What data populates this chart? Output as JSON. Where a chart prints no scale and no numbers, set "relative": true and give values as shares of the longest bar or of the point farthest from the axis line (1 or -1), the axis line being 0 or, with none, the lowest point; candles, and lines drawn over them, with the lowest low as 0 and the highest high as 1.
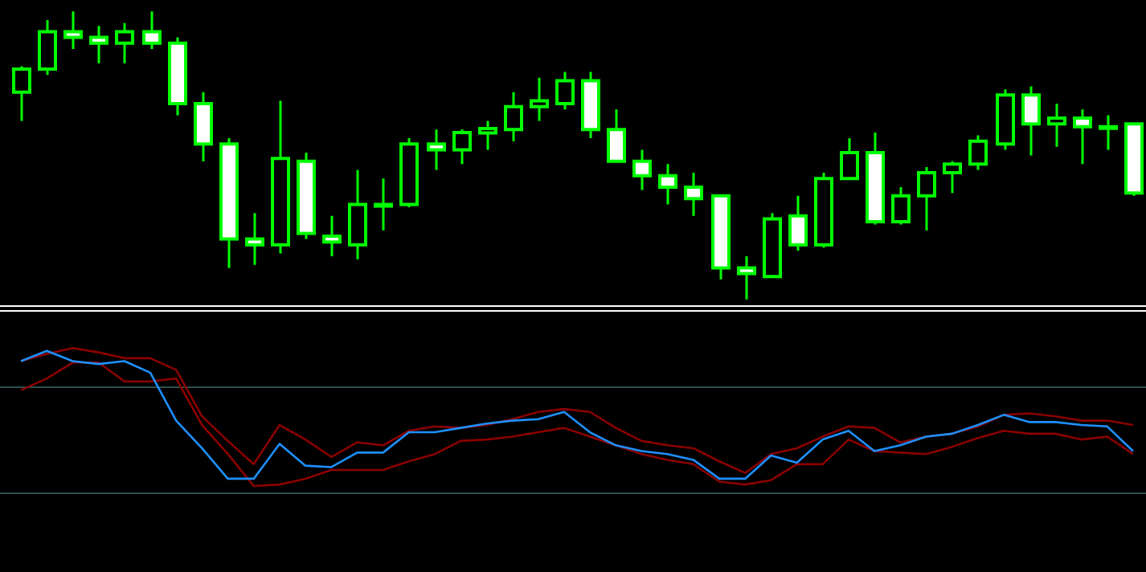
{
  "chart_data": [
    {
      "type": "candlestick",
      "relative": true,
      "color": "#00ff00",
      "grid": false,
      "legend": false,
      "tick_labels": false,
      "colors": [
        "#00ff00",
        "#00ff00",
        "#ffffff",
        "#ffffff",
        "#00ff00",
        "#ffffff",
        "#ffffff",
        "#ffffff",
        "#ffffff",
        "#ffffff",
        "#00ff00",
        "#ffffff",
        "#ffffff",
        "#00ff00",
        "#00ff00",
        "#00ff00",
        "#ffffff",
        "#00ff00",
        "#00ff00",
        "#00ff00",
        "#00ff00",
        "#00ff00",
        "#ffffff",
        "#ffffff",
        "#ffffff",
        "#ffffff",
        "#ffffff",
        "#ffffff",
        "#ffffff",
        "#00ff00",
        "#ffffff",
        "#00ff00",
        "#00ff00",
        "#ffffff",
        "#00ff00",
        "#00ff00",
        "#00ff00",
        "#00ff00",
        "#00ff00",
        "#ffffff",
        "#00ff00",
        "#ffffff",
        "#00ff00",
        "#ffffff"
      ],
      "categories": [
        null,
        null,
        null,
        null,
        null,
        null,
        null,
        null,
        null,
        null,
        null,
        null,
        null,
        null,
        null,
        null,
        null,
        null,
        null,
        null,
        null,
        null,
        null,
        null,
        null,
        null,
        null,
        null,
        null,
        null,
        null,
        null,
        null,
        null,
        null,
        null,
        null,
        null,
        null,
        null,
        null,
        null,
        null,
        null
      ],
      "ohlc": [
        [
          0.72,
          0.81,
          0.62,
          0.8
        ],
        [
          0.8,
          0.97,
          0.78,
          0.93
        ],
        [
          0.93,
          1.0,
          0.87,
          0.91
        ],
        [
          0.91,
          0.95,
          0.82,
          0.89
        ],
        [
          0.89,
          0.96,
          0.82,
          0.93
        ],
        [
          0.93,
          1.0,
          0.87,
          0.89
        ],
        [
          0.89,
          0.91,
          0.64,
          0.68
        ],
        [
          0.68,
          0.72,
          0.48,
          0.54
        ],
        [
          0.54,
          0.56,
          0.11,
          0.21
        ],
        [
          0.21,
          0.3,
          0.12,
          0.19
        ],
        [
          0.19,
          0.69,
          0.16,
          0.49
        ],
        [
          0.48,
          0.51,
          0.21,
          0.23
        ],
        [
          0.22,
          0.29,
          0.15,
          0.2
        ],
        [
          0.19,
          0.45,
          0.14,
          0.33
        ],
        [
          0.33,
          0.42,
          0.24,
          0.33
        ],
        [
          0.33,
          0.56,
          0.32,
          0.54
        ],
        [
          0.54,
          0.59,
          0.45,
          0.52
        ],
        [
          0.52,
          0.59,
          0.47,
          0.58
        ],
        [
          0.578,
          0.62,
          0.52,
          0.594
        ],
        [
          0.59,
          0.72,
          0.55,
          0.67
        ],
        [
          0.67,
          0.77,
          0.62,
          0.69
        ],
        [
          0.68,
          0.79,
          0.66,
          0.76
        ],
        [
          0.76,
          0.79,
          0.56,
          0.59
        ],
        [
          0.59,
          0.66,
          0.48,
          0.48
        ],
        [
          0.48,
          0.52,
          0.38,
          0.43
        ],
        [
          0.43,
          0.47,
          0.33,
          0.39
        ],
        [
          0.39,
          0.44,
          0.29,
          0.35
        ],
        [
          0.36,
          0.36,
          0.07,
          0.11
        ],
        [
          0.11,
          0.15,
          0,
          0.09
        ],
        [
          0.08,
          0.3,
          0.08,
          0.28
        ],
        [
          0.29,
          0.36,
          0.17,
          0.19
        ],
        [
          0.19,
          0.44,
          0.18,
          0.42
        ],
        [
          0.42,
          0.56,
          0.42,
          0.51
        ],
        [
          0.51,
          0.58,
          0.26,
          0.27
        ],
        [
          0.27,
          0.39,
          0.26,
          0.36
        ],
        [
          0.36,
          0.46,
          0.24,
          0.44
        ],
        [
          0.44,
          0.48,
          0.37,
          0.47
        ],
        [
          0.47,
          0.57,
          0.45,
          0.55
        ],
        [
          0.54,
          0.73,
          0.52,
          0.71
        ],
        [
          0.71,
          0.74,
          0.5,
          0.61
        ],
        [
          0.61,
          0.68,
          0.53,
          0.63
        ],
        [
          0.63,
          0.66,
          0.47,
          0.6
        ],
        [
          0.6,
          0.64,
          0.52,
          0.6
        ],
        [
          0.61,
          0.61,
          0.36,
          0.37
        ]
      ]
    },
    {
      "type": "line",
      "relative": true,
      "grid": false,
      "legend": false,
      "tick_labels": false,
      "marker": "none",
      "line_style": "solid",
      "categories": [
        null,
        null,
        null,
        null,
        null,
        null,
        null,
        null,
        null,
        null,
        null,
        null,
        null,
        null,
        null,
        null,
        null,
        null,
        null,
        null,
        null,
        null,
        null,
        null,
        null,
        null,
        null,
        null,
        null,
        null,
        null,
        null,
        null,
        null,
        null,
        null,
        null,
        null,
        null,
        null,
        null,
        null,
        null,
        null
      ],
      "series": [
        {
          "color": "#8b0000",
          "values": [
            0.91,
            0.96,
            1.0,
            0.97,
            0.93,
            0.93,
            0.85,
            0.53,
            0.36,
            0.2,
            0.47,
            0.37,
            0.25,
            0.35,
            0.33,
            0.43,
            0.46,
            0.45,
            0.47,
            0.51,
            0.56,
            0.58,
            0.56,
            0.45,
            0.36,
            0.33,
            0.31,
            0.22,
            0.14,
            0.27,
            0.31,
            0.39,
            0.46,
            0.45,
            0.35,
            0.39,
            0.41,
            0.46,
            0.54,
            0.55,
            0.53,
            0.5,
            0.5,
            0.47
          ]
        },
        {
          "color": "#8b0000",
          "values": [
            0.71,
            0.79,
            0.9,
            0.9,
            0.77,
            0.77,
            0.79,
            0.47,
            0.27,
            0.05,
            0.06,
            0.1,
            0.16,
            0.16,
            0.16,
            0.22,
            0.27,
            0.36,
            0.37,
            0.39,
            0.42,
            0.45,
            0.39,
            0.33,
            0.27,
            0.23,
            0.2,
            0.08,
            0.06,
            0.09,
            0.2,
            0.2,
            0.37,
            0.29,
            0.28,
            0.27,
            0.32,
            0.38,
            0.43,
            0.41,
            0.41,
            0.37,
            0.39,
            0.27
          ]
        },
        {
          "color": "#1e90ff",
          "values": [
            0.91,
            0.98,
            0.91,
            0.89,
            0.91,
            0.83,
            0.5,
            0.31,
            0.1,
            0.1,
            0.34,
            0.19,
            0.18,
            0.28,
            0.28,
            0.42,
            0.42,
            0.45,
            0.48,
            0.5,
            0.51,
            0.56,
            0.42,
            0.33,
            0.29,
            0.27,
            0.23,
            0.1,
            0.1,
            0.26,
            0.21,
            0.37,
            0.43,
            0.29,
            0.33,
            0.39,
            0.41,
            0.47,
            0.54,
            0.49,
            0.49,
            0.47,
            0.46,
            0.29
          ]
        }
      ],
      "ref_lines": [
        {
          "axis": "y",
          "value": 0.73,
          "color": "#2f4f4f"
        },
        {
          "axis": "y",
          "value": 0,
          "color": "#2f4f4f"
        }
      ]
    }
  ]
}
